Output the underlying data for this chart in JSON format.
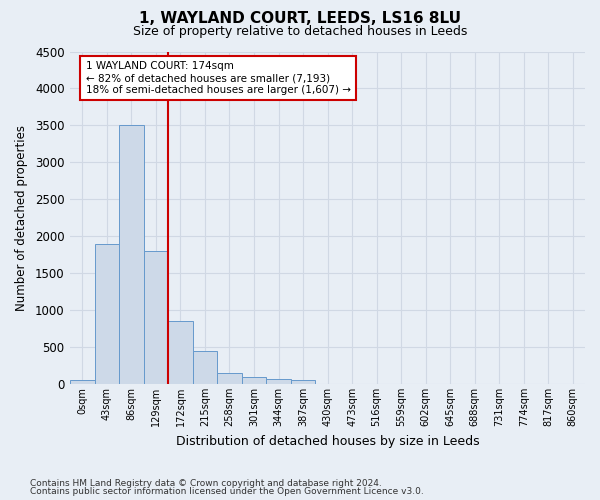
{
  "title": "1, WAYLAND COURT, LEEDS, LS16 8LU",
  "subtitle": "Size of property relative to detached houses in Leeds",
  "xlabel": "Distribution of detached houses by size in Leeds",
  "ylabel": "Number of detached properties",
  "footnote1": "Contains HM Land Registry data © Crown copyright and database right 2024.",
  "footnote2": "Contains public sector information licensed under the Open Government Licence v3.0.",
  "bar_labels": [
    "0sqm",
    "43sqm",
    "86sqm",
    "129sqm",
    "172sqm",
    "215sqm",
    "258sqm",
    "301sqm",
    "344sqm",
    "387sqm",
    "430sqm",
    "473sqm",
    "516sqm",
    "559sqm",
    "602sqm",
    "645sqm",
    "688sqm",
    "731sqm",
    "774sqm",
    "817sqm",
    "860sqm"
  ],
  "bar_values": [
    50,
    1900,
    3500,
    1800,
    850,
    450,
    150,
    100,
    70,
    60,
    0,
    0,
    0,
    0,
    0,
    0,
    0,
    0,
    0,
    0,
    0
  ],
  "bar_color": "#cdd9e8",
  "bar_edgecolor": "#6699cc",
  "vline_x_index": 4,
  "vline_color": "#cc0000",
  "annotation_text": "1 WAYLAND COURT: 174sqm\n← 82% of detached houses are smaller (7,193)\n18% of semi-detached houses are larger (1,607) →",
  "annotation_box_facecolor": "#ffffff",
  "annotation_box_edgecolor": "#cc0000",
  "ylim": [
    0,
    4500
  ],
  "yticks": [
    0,
    500,
    1000,
    1500,
    2000,
    2500,
    3000,
    3500,
    4000,
    4500
  ],
  "bg_color": "#e8eef5",
  "plot_bg_color": "#e8eef5",
  "grid_color": "#d0d8e4",
  "title_fontsize": 11,
  "subtitle_fontsize": 9
}
